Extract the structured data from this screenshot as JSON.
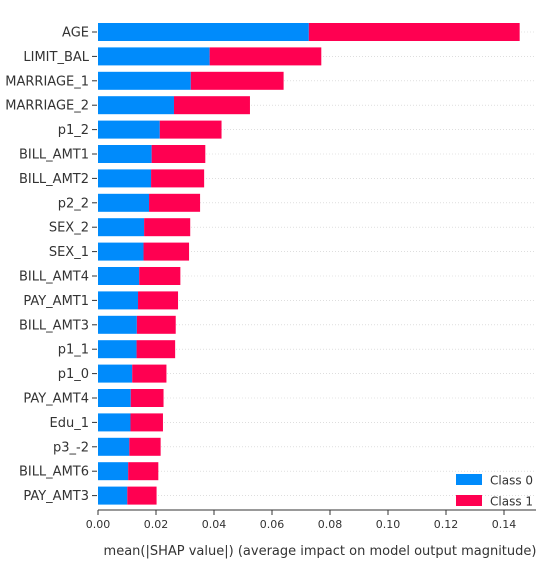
{
  "chart_data": {
    "type": "bar",
    "orientation": "horizontal",
    "stacked": true,
    "xlabel": "mean(|SHAP value|) (average impact on model output magnitude)",
    "xlim": [
      0,
      0.15
    ],
    "xticks": [
      "0.00",
      "0.02",
      "0.04",
      "0.06",
      "0.08",
      "0.10",
      "0.12",
      "0.14"
    ],
    "legend_position": "bottom-right",
    "categories": [
      "AGE",
      "LIMIT_BAL",
      "MARRIAGE_1",
      "MARRIAGE_2",
      "p1_2",
      "BILL_AMT1",
      "BILL_AMT2",
      "p2_2",
      "SEX_2",
      "SEX_1",
      "BILL_AMT4",
      "PAY_AMT1",
      "BILL_AMT3",
      "p1_1",
      "p1_0",
      "PAY_AMT4",
      "Edu_1",
      "p3_-2",
      "BILL_AMT6",
      "PAY_AMT3"
    ],
    "series": [
      {
        "name": "Class 0",
        "color": "#008bfb",
        "values": [
          0.0727,
          0.0385,
          0.032,
          0.0262,
          0.0213,
          0.0185,
          0.0183,
          0.0176,
          0.0159,
          0.0157,
          0.0142,
          0.0138,
          0.0134,
          0.0133,
          0.0118,
          0.0113,
          0.0112,
          0.0108,
          0.0104,
          0.0101
        ]
      },
      {
        "name": "Class 1",
        "color": "#ff0051",
        "values": [
          0.0727,
          0.0385,
          0.032,
          0.0262,
          0.0213,
          0.0185,
          0.0183,
          0.0176,
          0.0159,
          0.0157,
          0.0142,
          0.0138,
          0.0134,
          0.0133,
          0.0118,
          0.0113,
          0.0112,
          0.0108,
          0.0104,
          0.0101
        ]
      }
    ]
  }
}
